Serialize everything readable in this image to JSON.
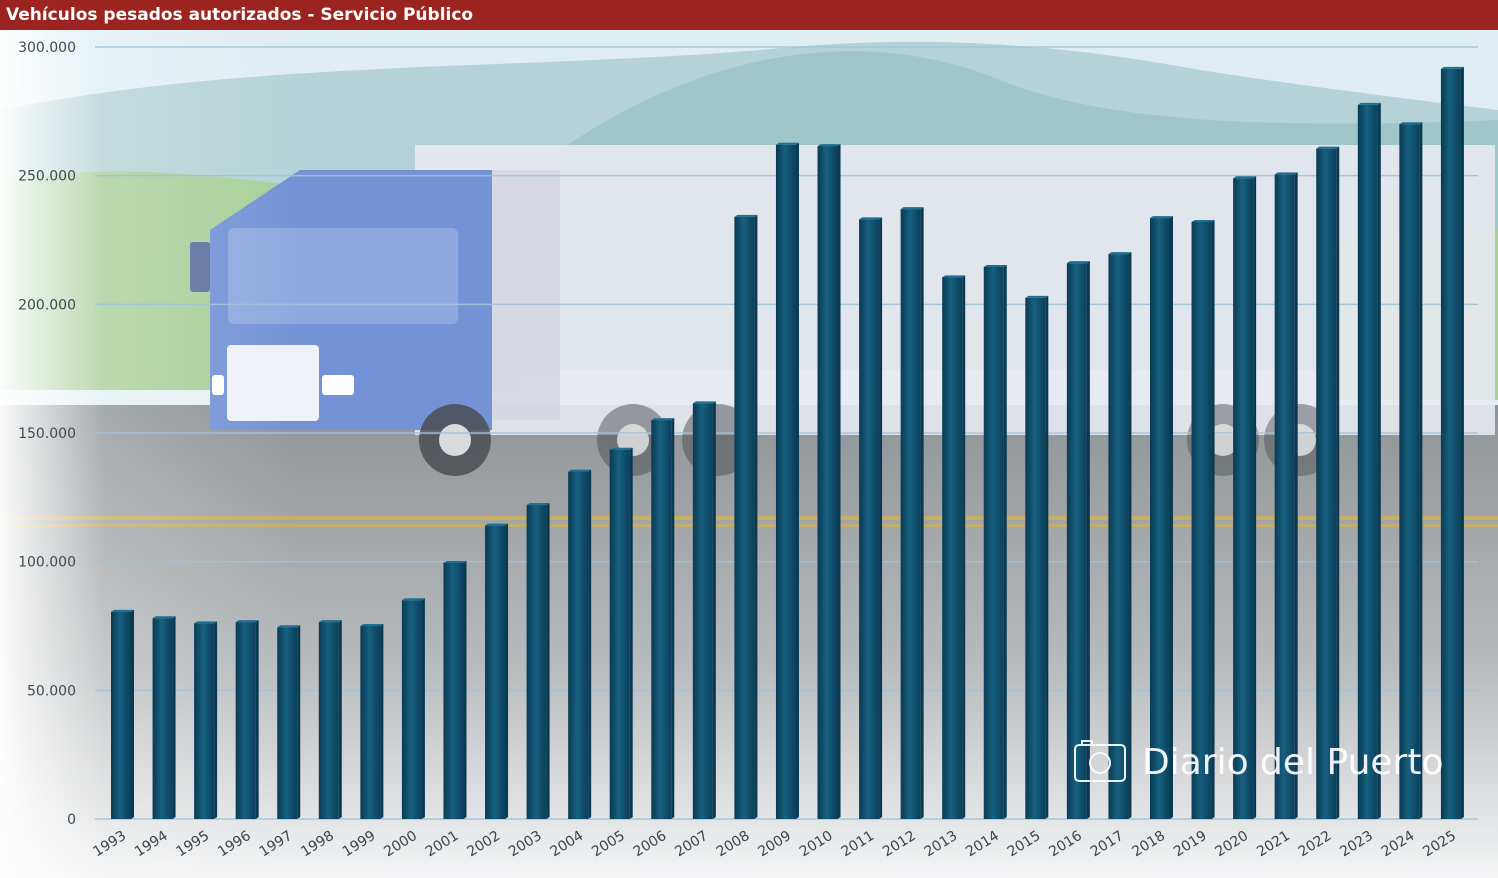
{
  "header": {
    "title": "Vehículos pesados autorizados - Servicio Público"
  },
  "watermark": {
    "text": "Diario del Puerto",
    "icon": "camera-icon"
  },
  "colors": {
    "title_bar": "#9b2420",
    "bar": "#0f4e6e",
    "bar_dark": "#0a3a53"
  },
  "chart_data": {
    "type": "bar",
    "title": "Vehículos pesados autorizados - Servicio Público",
    "xlabel": "",
    "ylabel": "",
    "ylim": [
      0,
      300000
    ],
    "yticks": [
      0,
      50000,
      100000,
      150000,
      200000,
      250000,
      300000
    ],
    "ytick_labels": [
      "0",
      "50.000",
      "100.000",
      "150.000",
      "200.000",
      "250.000",
      "300.000"
    ],
    "grid": true,
    "categories": [
      "1993",
      "1994",
      "1995",
      "1996",
      "1997",
      "1998",
      "1999",
      "2000",
      "2001",
      "2002",
      "2003",
      "2004",
      "2005",
      "2006",
      "2007",
      "2008",
      "2009",
      "2010",
      "2011",
      "2012",
      "2013",
      "2014",
      "2015",
      "2016",
      "2017",
      "2018",
      "2019",
      "2020",
      "2021",
      "2022",
      "2023",
      "2024",
      "2025"
    ],
    "values": [
      80500,
      78000,
      76000,
      76500,
      74500,
      76500,
      75000,
      85000,
      99500,
      114000,
      122000,
      135000,
      143500,
      155000,
      161500,
      234000,
      262000,
      261500,
      233000,
      237000,
      210500,
      214500,
      202500,
      216000,
      219500,
      233500,
      232000,
      249000,
      250500,
      260500,
      277500,
      270000,
      291500
    ]
  }
}
